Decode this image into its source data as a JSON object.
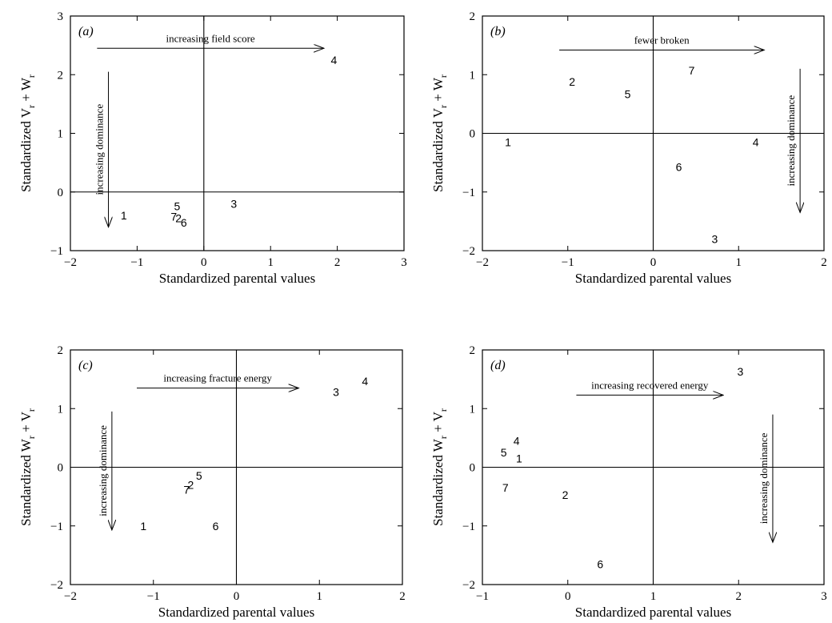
{
  "chart_data": [
    {
      "type": "scatter",
      "panel_label": "(a)",
      "xlabel": "Standardized parental values",
      "ylabel": {
        "main": "Standardized V",
        "sub1": "r",
        "mid": " + W",
        "sub2": "r"
      },
      "xlim": [
        -2,
        3
      ],
      "ylim": [
        -1,
        3
      ],
      "xticks": [
        -2,
        -1,
        0,
        1,
        2,
        3
      ],
      "yticks": [
        -1,
        0,
        1,
        2,
        3
      ],
      "reference_lines": {
        "x": 0,
        "y": 0
      },
      "points": [
        {
          "label": "1",
          "x": -1.2,
          "y": -0.4
        },
        {
          "label": "2",
          "x": -0.38,
          "y": -0.45
        },
        {
          "label": "3",
          "x": 0.45,
          "y": -0.2
        },
        {
          "label": "4",
          "x": 1.95,
          "y": 2.25
        },
        {
          "label": "5",
          "x": -0.4,
          "y": -0.24
        },
        {
          "label": "6",
          "x": -0.3,
          "y": -0.52
        },
        {
          "label": "7",
          "x": -0.45,
          "y": -0.42
        }
      ],
      "annotations": [
        {
          "text": "increasing field score",
          "direction": "right",
          "from": [
            -1.6,
            2.45
          ],
          "to": [
            1.8,
            2.45
          ]
        },
        {
          "text": "increasing dominance",
          "direction": "down",
          "from": [
            -1.43,
            2.05
          ],
          "to": [
            -1.43,
            -0.6
          ]
        }
      ]
    },
    {
      "type": "scatter",
      "panel_label": "(b)",
      "xlabel": "Standardized parental values",
      "ylabel": {
        "main": "Standardized V",
        "sub1": "r",
        "mid": " + W",
        "sub2": "r"
      },
      "xlim": [
        -2,
        2
      ],
      "ylim": [
        -2,
        2
      ],
      "xticks": [
        -2,
        -1,
        0,
        1,
        2
      ],
      "yticks": [
        -2,
        -1,
        0,
        1,
        2
      ],
      "reference_lines": {
        "x": 0,
        "y": 0
      },
      "points": [
        {
          "label": "1",
          "x": -1.7,
          "y": -0.15
        },
        {
          "label": "2",
          "x": -0.95,
          "y": 0.88
        },
        {
          "label": "3",
          "x": 0.72,
          "y": -1.8
        },
        {
          "label": "4",
          "x": 1.2,
          "y": -0.15
        },
        {
          "label": "5",
          "x": -0.3,
          "y": 0.67
        },
        {
          "label": "6",
          "x": 0.3,
          "y": -0.57
        },
        {
          "label": "7",
          "x": 0.45,
          "y": 1.07
        }
      ],
      "annotations": [
        {
          "text": "fewer broken",
          "direction": "right",
          "from": [
            -1.1,
            1.42
          ],
          "to": [
            1.3,
            1.42
          ]
        },
        {
          "text": "increasing dominance",
          "direction": "down",
          "from": [
            1.72,
            1.1
          ],
          "to": [
            1.72,
            -1.35
          ]
        }
      ]
    },
    {
      "type": "scatter",
      "panel_label": "(c)",
      "xlabel": "Standardized parental values",
      "ylabel": {
        "main": "Standardized W",
        "sub1": "r",
        "mid": " + V",
        "sub2": "r"
      },
      "xlim": [
        -2,
        2
      ],
      "ylim": [
        -2,
        2
      ],
      "xticks": [
        -2,
        -1,
        0,
        1,
        2
      ],
      "yticks": [
        -2,
        -1,
        0,
        1,
        2
      ],
      "reference_lines": {
        "x": 0,
        "y": 0
      },
      "points": [
        {
          "label": "1",
          "x": -1.12,
          "y": -1.0
        },
        {
          "label": "2",
          "x": -0.55,
          "y": -0.3
        },
        {
          "label": "3",
          "x": 1.2,
          "y": 1.28
        },
        {
          "label": "4",
          "x": 1.55,
          "y": 1.47
        },
        {
          "label": "5",
          "x": -0.45,
          "y": -0.14
        },
        {
          "label": "6",
          "x": -0.25,
          "y": -1.0
        },
        {
          "label": "7",
          "x": -0.6,
          "y": -0.38
        }
      ],
      "annotations": [
        {
          "text": "increasing fracture energy",
          "direction": "right",
          "from": [
            -1.2,
            1.35
          ],
          "to": [
            0.75,
            1.35
          ]
        },
        {
          "text": "increasing dominance",
          "direction": "down",
          "from": [
            -1.5,
            0.95
          ],
          "to": [
            -1.5,
            -1.07
          ]
        }
      ]
    },
    {
      "type": "scatter",
      "panel_label": "(d)",
      "xlabel": "Standardized parental values",
      "ylabel": {
        "main": "Standardized W",
        "sub1": "r",
        "mid": " + V",
        "sub2": "r"
      },
      "xlim": [
        -1,
        3
      ],
      "ylim": [
        -2,
        2
      ],
      "xticks": [
        -1,
        0,
        1,
        2,
        3
      ],
      "yticks": [
        -2,
        -1,
        0,
        1,
        2
      ],
      "reference_lines": {
        "x": 1,
        "y": 0
      },
      "points": [
        {
          "label": "1",
          "x": -0.57,
          "y": 0.15
        },
        {
          "label": "2",
          "x": -0.03,
          "y": -0.47
        },
        {
          "label": "3",
          "x": 2.02,
          "y": 1.63
        },
        {
          "label": "4",
          "x": -0.6,
          "y": 0.45
        },
        {
          "label": "5",
          "x": -0.75,
          "y": 0.25
        },
        {
          "label": "6",
          "x": 0.38,
          "y": -1.65
        },
        {
          "label": "7",
          "x": -0.73,
          "y": -0.35
        }
      ],
      "annotations": [
        {
          "text": "increasing recovered energy",
          "direction": "right",
          "from": [
            0.1,
            1.23
          ],
          "to": [
            1.82,
            1.23
          ]
        },
        {
          "text": "increasing dominance",
          "direction": "down",
          "from": [
            2.4,
            0.9
          ],
          "to": [
            2.4,
            -1.28
          ]
        }
      ]
    }
  ]
}
